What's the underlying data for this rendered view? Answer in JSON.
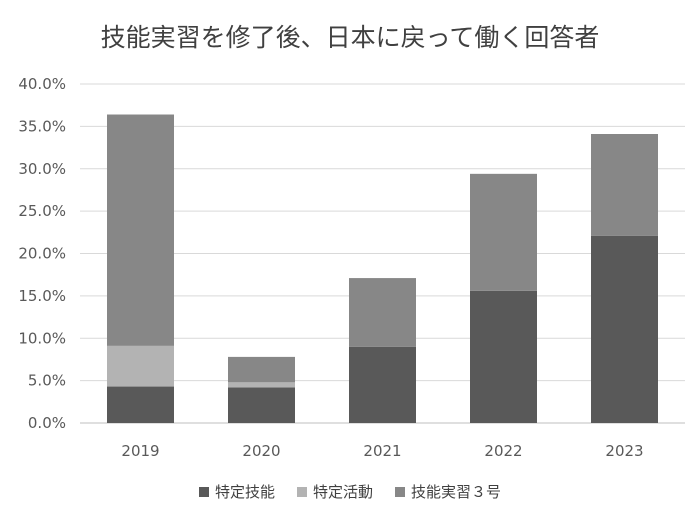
{
  "chart_data": {
    "type": "bar",
    "stacked": true,
    "title": "技能実習を修了後、日本に戻って働く回答者",
    "xlabel": "",
    "ylabel": "",
    "categories": [
      "2019",
      "2020",
      "2021",
      "2022",
      "2023"
    ],
    "series": [
      {
        "name": "特定技能",
        "color": "#595959",
        "values": [
          4.3,
          4.2,
          9.0,
          15.6,
          22.1
        ]
      },
      {
        "name": "特定活動",
        "color": "#b3b3b3",
        "values": [
          4.8,
          0.6,
          0.0,
          0.0,
          0.0
        ]
      },
      {
        "name": "技能実習３号",
        "color": "#878787",
        "values": [
          27.3,
          3.0,
          8.1,
          13.8,
          12.0
        ]
      }
    ],
    "ylim": [
      0,
      40
    ],
    "yticks": [
      "0.0%",
      "5.0%",
      "10.0%",
      "15.0%",
      "20.0%",
      "25.0%",
      "30.0%",
      "35.0%",
      "40.0%"
    ],
    "grid": true,
    "legend_position": "bottom"
  }
}
